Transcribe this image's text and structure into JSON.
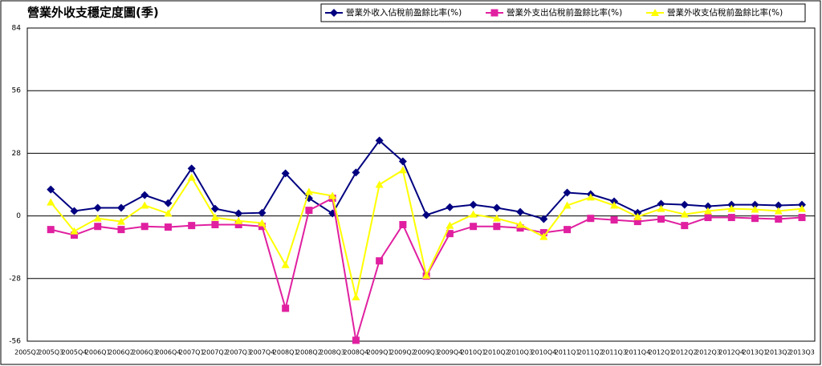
{
  "chart_data": {
    "type": "line",
    "title": "營業外收支穩定度圖(季)",
    "categories": [
      "2005Q2",
      "2005Q3",
      "2005Q4",
      "2006Q1",
      "2006Q2",
      "2006Q3",
      "2006Q4",
      "2007Q1",
      "2007Q2",
      "2007Q3",
      "2007Q4",
      "2008Q1",
      "2008Q2",
      "2008Q3",
      "2008Q4",
      "2009Q1",
      "2009Q2",
      "2009Q3",
      "2009Q4",
      "2010Q1",
      "2010Q2",
      "2010Q3",
      "2010Q4",
      "2011Q1",
      "2011Q2",
      "2011Q3",
      "2011Q4",
      "2012Q1",
      "2012Q2",
      "2012Q3",
      "2012Q4",
      "2013Q1",
      "2013Q2",
      "2013Q3"
    ],
    "series": [
      {
        "name": "營業外收入佔稅前盈餘比率(%)",
        "color": "#000080",
        "marker": "diamond",
        "values": [
          null,
          11.8,
          2.2,
          3.6,
          3.6,
          9.3,
          5.7,
          21.2,
          3.2,
          1.1,
          1.4,
          19.0,
          7.9,
          1.1,
          19.4,
          33.7,
          24.4,
          0.4,
          3.9,
          5.0,
          3.6,
          1.8,
          -1.4,
          10.4,
          9.7,
          6.5,
          1.4,
          5.4,
          5.0,
          4.3,
          5.0,
          5.0,
          4.7,
          5.0
        ]
      },
      {
        "name": "營業外支出佔稅前盈餘比率(%)",
        "color": "#e020a0",
        "marker": "square",
        "values": [
          null,
          -6.1,
          -8.6,
          -4.7,
          -6.1,
          -4.7,
          -5.0,
          -4.3,
          -3.9,
          -3.9,
          -4.7,
          -41.3,
          2.5,
          7.9,
          -55.6,
          -20.1,
          -3.9,
          -26.9,
          -7.9,
          -4.7,
          -4.7,
          -5.4,
          -7.5,
          -6.1,
          -1.1,
          -1.8,
          -2.5,
          -1.4,
          -4.3,
          -0.7,
          -0.7,
          -1.1,
          -1.4,
          -0.7
        ]
      },
      {
        "name": "營業外收支佔稅前盈餘比率(%)",
        "color": "#ffff00",
        "marker": "triangle",
        "values": [
          null,
          6.1,
          -6.8,
          -1.1,
          -2.5,
          4.7,
          1.1,
          17.2,
          -0.7,
          -2.2,
          -3.2,
          -21.9,
          10.8,
          9.0,
          -36.3,
          14.0,
          20.5,
          -26.6,
          -4.3,
          0.7,
          -1.1,
          -3.9,
          -9.3,
          4.7,
          8.3,
          4.7,
          -0.4,
          3.2,
          0.7,
          2.2,
          3.2,
          2.9,
          2.2,
          3.2
        ]
      }
    ],
    "ylim": [
      -56,
      84
    ],
    "yticks": [
      -56,
      -28,
      0,
      28,
      56,
      84
    ],
    "grid": true
  }
}
